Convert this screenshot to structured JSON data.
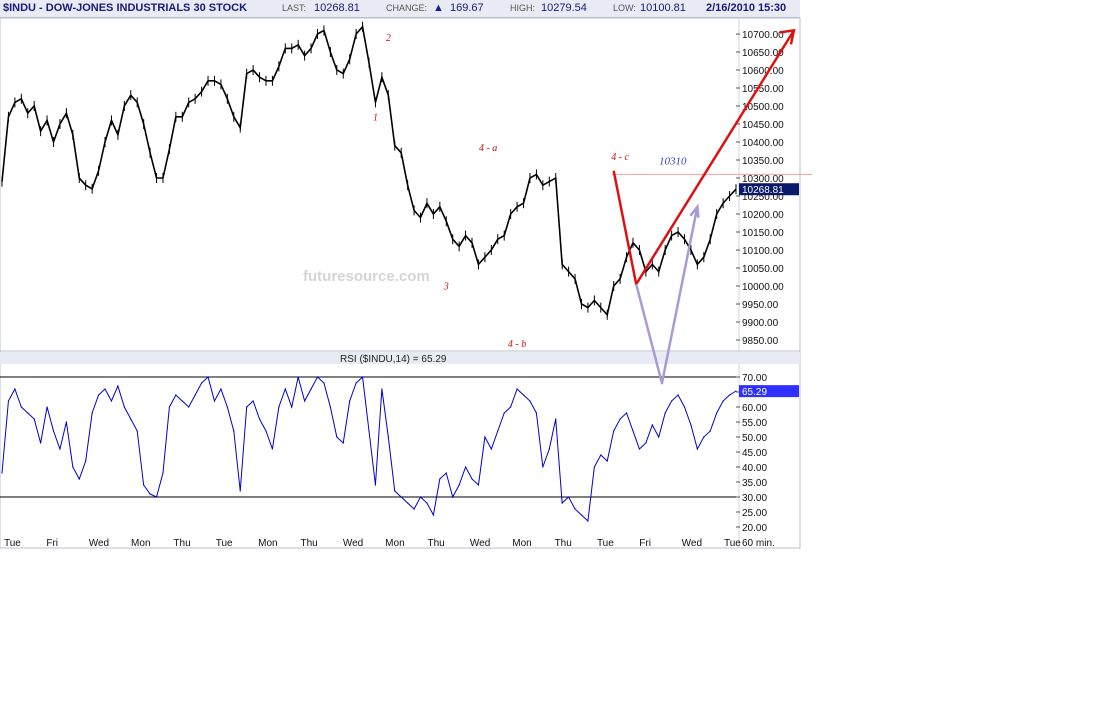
{
  "header": {
    "symbol": "$INDU - DOW-JONES INDUSTRIALS 30 STOCK",
    "last_label": "LAST:",
    "last_value": "10268.81",
    "change_label": "CHANGE:",
    "change_arrow": "▲",
    "change_value": "169.67",
    "high_label": "HIGH:",
    "high_value": "10279.54",
    "low_label": "LOW:",
    "low_value": "10100.81",
    "datetime": "2/16/2010 15:30"
  },
  "watermark": "futuresource.com",
  "colors": {
    "price": "#000000",
    "rsi": "#0000cc",
    "last_badge": "#0a1a6b",
    "rsi_badge": "#2f2fff",
    "forecast_red": "#dd1111",
    "forecast_purple": "#a99ad4",
    "resistance_line": "#f0a0a0"
  },
  "chart_data": [
    {
      "type": "line",
      "title": "$INDU - DOW-JONES INDUSTRIALS 30 STOCK",
      "interval": "60 min.",
      "categories": [
        "Tue",
        "Fri",
        "Wed",
        "Mon",
        "Thu",
        "Tue",
        "Mon",
        "Thu",
        "Wed",
        "Mon",
        "Thu",
        "Wed",
        "Mon",
        "Thu",
        "Tue",
        "Fri",
        "Wed",
        "Tue"
      ],
      "yticks": [
        "10700.00",
        "10650.00",
        "10600.00",
        "10550.00",
        "10500.00",
        "10450.00",
        "10400.00",
        "10350.00",
        "10300.00",
        "10250.00",
        "10200.00",
        "10150.00",
        "10100.00",
        "10050.00",
        "10000.00",
        "9950.00",
        "9900.00",
        "9850.00"
      ],
      "ylim": [
        9830,
        10735
      ],
      "last_value_label": "10268.81",
      "resistance_level": 10310,
      "resistance_label": "10310",
      "series": [
        {
          "values": [
            [
              0,
              10290
            ],
            [
              2,
              10470
            ],
            [
              4,
              10510
            ],
            [
              6,
              10520
            ],
            [
              8,
              10480
            ],
            [
              10,
              10500
            ],
            [
              12,
              10430
            ],
            [
              14,
              10460
            ],
            [
              16,
              10400
            ],
            [
              18,
              10450
            ],
            [
              20,
              10480
            ],
            [
              22,
              10420
            ],
            [
              24,
              10300
            ],
            [
              26,
              10280
            ],
            [
              28,
              10270
            ],
            [
              30,
              10320
            ],
            [
              32,
              10400
            ],
            [
              34,
              10460
            ],
            [
              36,
              10420
            ],
            [
              38,
              10500
            ],
            [
              40,
              10530
            ],
            [
              42,
              10510
            ],
            [
              44,
              10450
            ],
            [
              46,
              10370
            ],
            [
              48,
              10300
            ],
            [
              50,
              10300
            ],
            [
              52,
              10380
            ],
            [
              54,
              10470
            ],
            [
              56,
              10470
            ],
            [
              58,
              10510
            ],
            [
              60,
              10520
            ],
            [
              62,
              10540
            ],
            [
              64,
              10570
            ],
            [
              66,
              10570
            ],
            [
              68,
              10560
            ],
            [
              70,
              10520
            ],
            [
              72,
              10470
            ],
            [
              74,
              10440
            ],
            [
              76,
              10590
            ],
            [
              78,
              10600
            ],
            [
              80,
              10580
            ],
            [
              82,
              10570
            ],
            [
              84,
              10570
            ],
            [
              86,
              10610
            ],
            [
              88,
              10660
            ],
            [
              90,
              10660
            ],
            [
              92,
              10670
            ],
            [
              94,
              10640
            ],
            [
              96,
              10660
            ],
            [
              98,
              10700
            ],
            [
              100,
              10710
            ],
            [
              102,
              10650
            ],
            [
              104,
              10600
            ],
            [
              106,
              10590
            ],
            [
              108,
              10630
            ],
            [
              110,
              10700
            ],
            [
              112,
              10720
            ],
            [
              114,
              10620
            ],
            [
              116,
              10510
            ],
            [
              118,
              10580
            ],
            [
              120,
              10530
            ],
            [
              122,
              10390
            ],
            [
              124,
              10370
            ],
            [
              126,
              10280
            ],
            [
              128,
              10210
            ],
            [
              130,
              10190
            ],
            [
              132,
              10230
            ],
            [
              134,
              10200
            ],
            [
              136,
              10220
            ],
            [
              138,
              10180
            ],
            [
              140,
              10130
            ],
            [
              142,
              10110
            ],
            [
              144,
              10140
            ],
            [
              146,
              10120
            ],
            [
              148,
              10060
            ],
            [
              150,
              10080
            ],
            [
              152,
              10100
            ],
            [
              154,
              10130
            ],
            [
              156,
              10140
            ],
            [
              158,
              10200
            ],
            [
              160,
              10220
            ],
            [
              162,
              10230
            ],
            [
              164,
              10300
            ],
            [
              166,
              10310
            ],
            [
              168,
              10280
            ],
            [
              170,
              10290
            ],
            [
              172,
              10300
            ],
            [
              174,
              10060
            ],
            [
              176,
              10040
            ],
            [
              178,
              10020
            ],
            [
              180,
              9950
            ],
            [
              182,
              9940
            ],
            [
              184,
              9960
            ],
            [
              186,
              9940
            ],
            [
              188,
              9920
            ],
            [
              190,
              10000
            ],
            [
              192,
              10020
            ],
            [
              194,
              10080
            ],
            [
              196,
              10120
            ],
            [
              198,
              10100
            ],
            [
              200,
              10040
            ],
            [
              202,
              10060
            ],
            [
              204,
              10040
            ],
            [
              206,
              10100
            ],
            [
              208,
              10140
            ],
            [
              210,
              10150
            ],
            [
              212,
              10130
            ],
            [
              214,
              10100
            ],
            [
              216,
              10060
            ],
            [
              218,
              10080
            ],
            [
              220,
              10130
            ],
            [
              222,
              10200
            ],
            [
              224,
              10230
            ],
            [
              226,
              10250
            ],
            [
              228,
              10268.81
            ]
          ]
        }
      ],
      "annotations": [
        {
          "text": "1",
          "x": 116,
          "y": 10460
        },
        {
          "text": "2",
          "x": 120,
          "y": 10680
        },
        {
          "text": "3",
          "x": 138,
          "y": 9990
        },
        {
          "text": "4 - a",
          "x": 151,
          "y": 10375
        },
        {
          "text": "4 - b",
          "x": 160,
          "y": 9830
        },
        {
          "text": "4 - c",
          "x": 192,
          "y": 10350
        }
      ],
      "forecast": [
        {
          "name": "red",
          "points": [
            [
              190,
              10320
            ],
            [
              197,
              10005
            ],
            [
              246,
              10710
            ]
          ]
        },
        {
          "name": "purple",
          "points": [
            [
              197,
              10005
            ],
            [
              205,
              9730
            ],
            [
              216,
              10220
            ]
          ]
        }
      ]
    },
    {
      "type": "line",
      "title": "RSI ($INDU,14) = 65.29",
      "yticks": [
        "70.00",
        "65.00",
        "60.00",
        "55.00",
        "50.00",
        "45.00",
        "40.00",
        "35.00",
        "30.00",
        "25.00",
        "20.00"
      ],
      "ylim": [
        17,
        73
      ],
      "reference_lines": [
        70,
        30
      ],
      "last_value_label": "65.29",
      "series": [
        {
          "values": [
            [
              0,
              38
            ],
            [
              2,
              62
            ],
            [
              4,
              66
            ],
            [
              6,
              60
            ],
            [
              8,
              58
            ],
            [
              10,
              56
            ],
            [
              12,
              48
            ],
            [
              14,
              60
            ],
            [
              16,
              52
            ],
            [
              18,
              46
            ],
            [
              20,
              55
            ],
            [
              22,
              40
            ],
            [
              24,
              36
            ],
            [
              26,
              42
            ],
            [
              28,
              58
            ],
            [
              30,
              64
            ],
            [
              32,
              66
            ],
            [
              34,
              62
            ],
            [
              36,
              67
            ],
            [
              38,
              60
            ],
            [
              40,
              56
            ],
            [
              42,
              52
            ],
            [
              44,
              34
            ],
            [
              46,
              31
            ],
            [
              48,
              30
            ],
            [
              50,
              38
            ],
            [
              52,
              60
            ],
            [
              54,
              64
            ],
            [
              56,
              62
            ],
            [
              58,
              60
            ],
            [
              60,
              64
            ],
            [
              62,
              68
            ],
            [
              64,
              70
            ],
            [
              66,
              62
            ],
            [
              68,
              66
            ],
            [
              70,
              60
            ],
            [
              72,
              52
            ],
            [
              74,
              32
            ],
            [
              76,
              60
            ],
            [
              78,
              62
            ],
            [
              80,
              56
            ],
            [
              82,
              52
            ],
            [
              84,
              46
            ],
            [
              86,
              60
            ],
            [
              88,
              66
            ],
            [
              90,
              60
            ],
            [
              92,
              70
            ],
            [
              94,
              62
            ],
            [
              96,
              66
            ],
            [
              98,
              70
            ],
            [
              100,
              68
            ],
            [
              102,
              60
            ],
            [
              104,
              50
            ],
            [
              106,
              48
            ],
            [
              108,
              62
            ],
            [
              110,
              68
            ],
            [
              112,
              70
            ],
            [
              114,
              52
            ],
            [
              116,
              34
            ],
            [
              118,
              66
            ],
            [
              120,
              50
            ],
            [
              122,
              32
            ],
            [
              124,
              30
            ],
            [
              126,
              28
            ],
            [
              128,
              26
            ],
            [
              130,
              30
            ],
            [
              132,
              28
            ],
            [
              134,
              24
            ],
            [
              136,
              36
            ],
            [
              138,
              38
            ],
            [
              140,
              30
            ],
            [
              142,
              34
            ],
            [
              144,
              40
            ],
            [
              146,
              36
            ],
            [
              148,
              34
            ],
            [
              150,
              50
            ],
            [
              152,
              46
            ],
            [
              154,
              52
            ],
            [
              156,
              58
            ],
            [
              158,
              60
            ],
            [
              160,
              66
            ],
            [
              162,
              64
            ],
            [
              164,
              62
            ],
            [
              166,
              58
            ],
            [
              168,
              40
            ],
            [
              170,
              46
            ],
            [
              172,
              56
            ],
            [
              174,
              28
            ],
            [
              176,
              30
            ],
            [
              178,
              26
            ],
            [
              180,
              24
            ],
            [
              182,
              22
            ],
            [
              184,
              40
            ],
            [
              186,
              44
            ],
            [
              188,
              42
            ],
            [
              190,
              52
            ],
            [
              192,
              56
            ],
            [
              194,
              58
            ],
            [
              196,
              52
            ],
            [
              198,
              46
            ],
            [
              200,
              48
            ],
            [
              202,
              54
            ],
            [
              204,
              50
            ],
            [
              206,
              58
            ],
            [
              208,
              62
            ],
            [
              210,
              64
            ],
            [
              212,
              60
            ],
            [
              214,
              54
            ],
            [
              216,
              46
            ],
            [
              218,
              50
            ],
            [
              220,
              52
            ],
            [
              222,
              58
            ],
            [
              224,
              62
            ],
            [
              226,
              64
            ],
            [
              228,
              65.29
            ]
          ]
        }
      ]
    }
  ]
}
